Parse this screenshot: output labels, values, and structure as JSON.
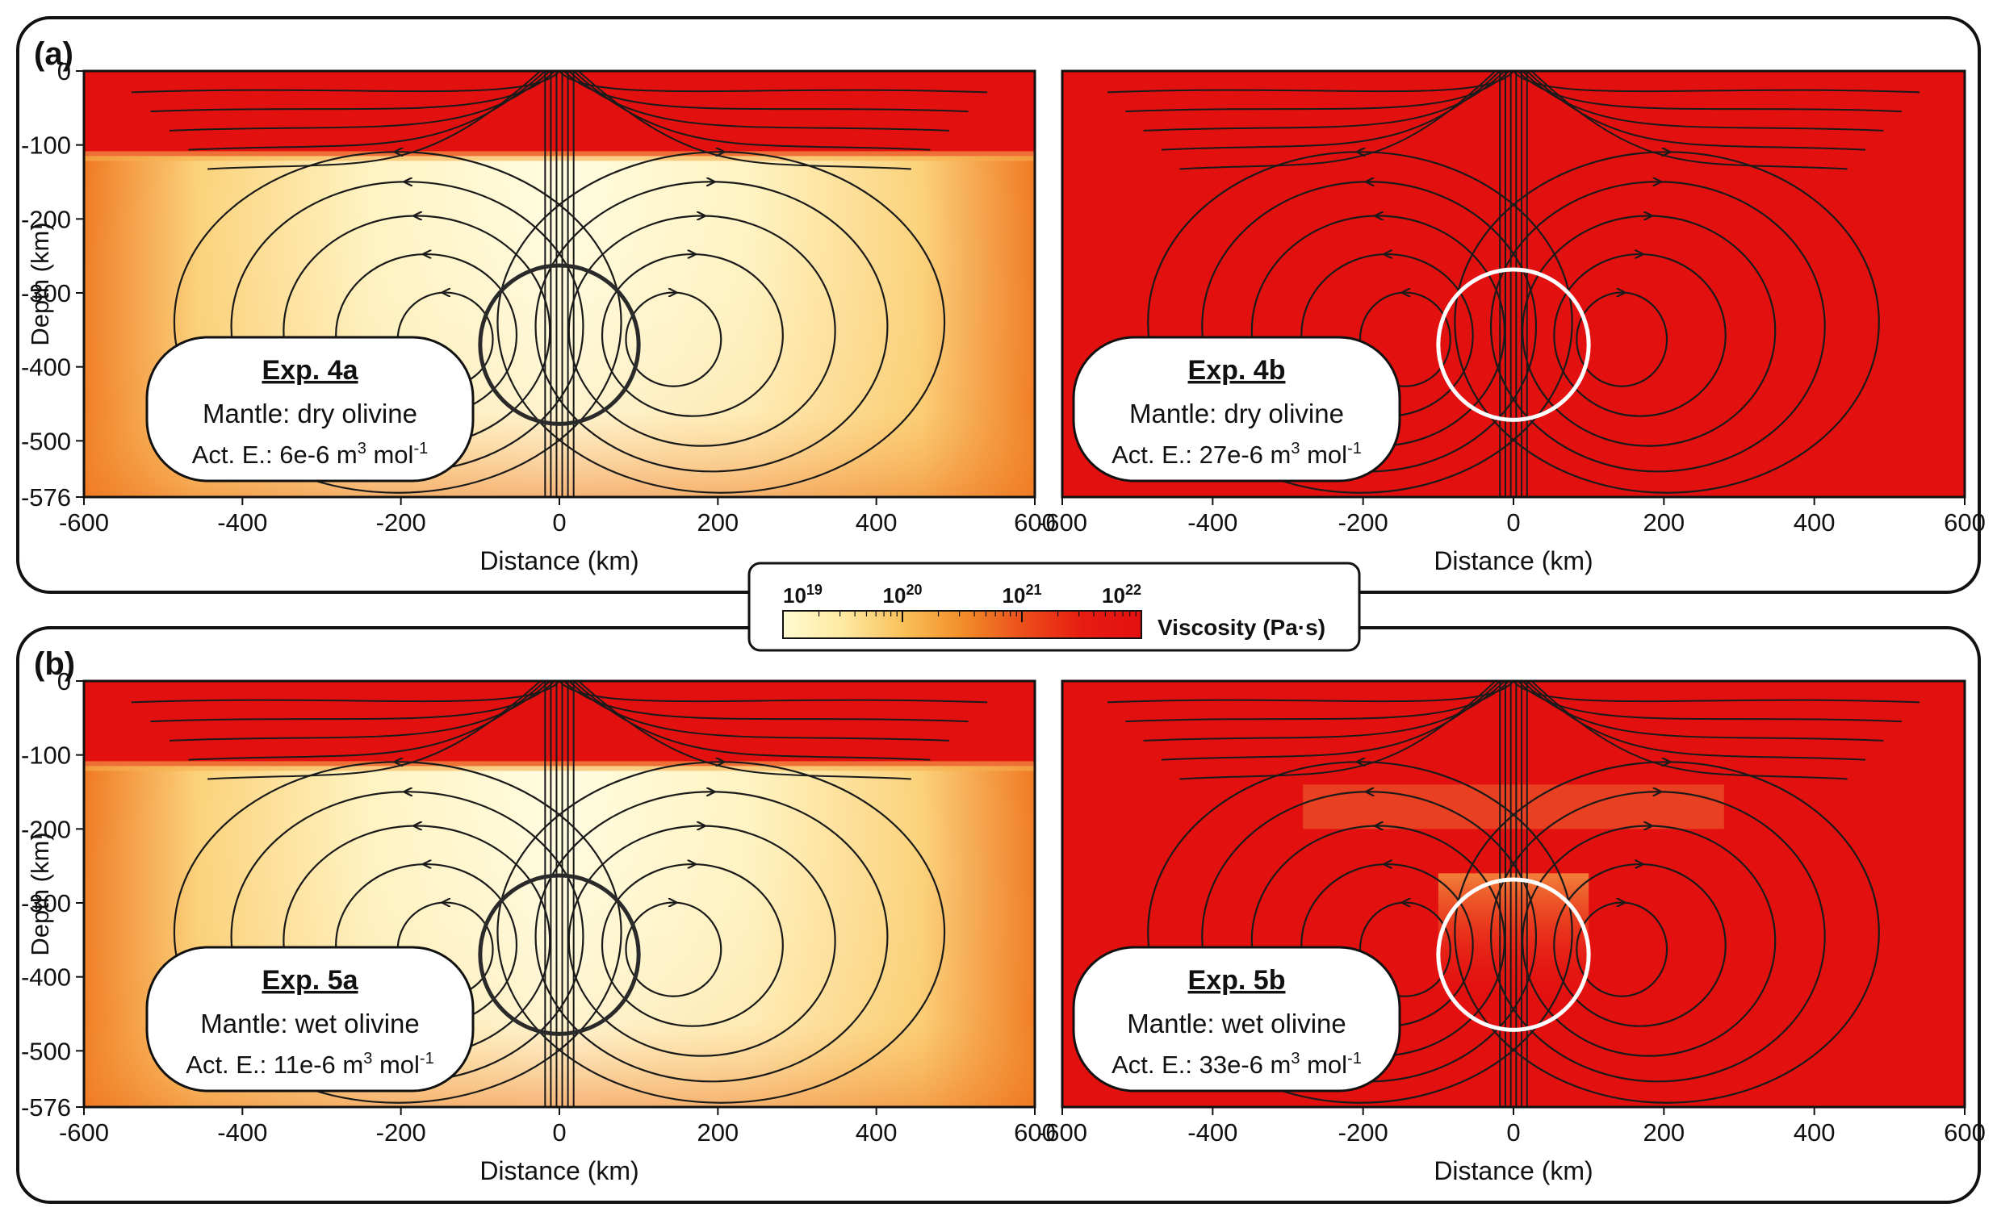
{
  "panel_groups": [
    {
      "label": "(a)"
    },
    {
      "label": "(b)"
    }
  ],
  "colorbar": {
    "title": "Viscosity (Pa·s)",
    "ticks": [
      {
        "base": "10",
        "exp": "19",
        "value": 19
      },
      {
        "base": "10",
        "exp": "20",
        "value": 20
      },
      {
        "base": "10",
        "exp": "21",
        "value": 21
      },
      {
        "base": "10",
        "exp": "22",
        "value": 22
      }
    ],
    "colors": [
      "#fffbcf",
      "#fde9a2",
      "#f9c15a",
      "#f28e2a",
      "#ec4f1b",
      "#e81d12",
      "#e31010"
    ]
  },
  "colors": {
    "high_viscosity": "#e31010",
    "low_viscosity": "#fffbd6",
    "streamline": "#1a1a1a",
    "circle_dark": "#2a2a2a",
    "circle_light": "#ffffff",
    "frame": "#111111"
  },
  "chart_data": [
    {
      "type": "heatmap",
      "id": "4a",
      "panel": "(a)",
      "xlabel": "Distance (km)",
      "ylabel": "Depth (km)",
      "xlim": [
        -600,
        600
      ],
      "ylim": [
        -576,
        0
      ],
      "xticks": [
        -600,
        -400,
        -200,
        0,
        200,
        400,
        600
      ],
      "yticks": [
        0,
        -100,
        -200,
        -300,
        -400,
        -500,
        -576
      ],
      "lithosphere_base_km": -115,
      "low_viscosity_zone": true,
      "circle": {
        "x_km": 0,
        "y_km": -370,
        "radius_km": 100,
        "color": "dark"
      },
      "label": {
        "title": "Exp. 4a",
        "mantle": "Mantle: dry olivine",
        "act_e_prefix": "Act. E.: 6e-6 m",
        "sup1": "3",
        "mid": " mol",
        "sup2": "-1"
      }
    },
    {
      "type": "heatmap",
      "id": "4b",
      "panel": "(a)",
      "xlabel": "Distance (km)",
      "xlim": [
        -600,
        600
      ],
      "ylim": [
        -576,
        0
      ],
      "xticks": [
        -600,
        -400,
        -200,
        0,
        200,
        400,
        600
      ],
      "low_viscosity_zone": false,
      "circle": {
        "x_km": 0,
        "y_km": -370,
        "radius_km": 100,
        "color": "light"
      },
      "label": {
        "title": "Exp. 4b",
        "mantle": "Mantle: dry olivine",
        "act_e_prefix": "Act. E.: 27e-6 m",
        "sup1": "3",
        "mid": " mol",
        "sup2": "-1"
      }
    },
    {
      "type": "heatmap",
      "id": "5a",
      "panel": "(b)",
      "xlabel": "Distance (km)",
      "ylabel": "Depth (km)",
      "xlim": [
        -600,
        600
      ],
      "ylim": [
        -576,
        0
      ],
      "xticks": [
        -600,
        -400,
        -200,
        0,
        200,
        400,
        600
      ],
      "yticks": [
        0,
        -100,
        -200,
        -300,
        -400,
        -500,
        -576
      ],
      "lithosphere_base_km": -115,
      "low_viscosity_zone": true,
      "circle": {
        "x_km": 0,
        "y_km": -370,
        "radius_km": 100,
        "color": "dark"
      },
      "label": {
        "title": "Exp. 5a",
        "mantle": "Mantle: wet olivine",
        "act_e_prefix": "Act. E.: 11e-6 m",
        "sup1": "3",
        "mid": " mol",
        "sup2": "-1"
      }
    },
    {
      "type": "heatmap",
      "id": "5b",
      "panel": "(b)",
      "xlabel": "Distance (km)",
      "xlim": [
        -600,
        600
      ],
      "ylim": [
        -576,
        0
      ],
      "xticks": [
        -600,
        -400,
        -200,
        0,
        200,
        400,
        600
      ],
      "low_viscosity_zone": false,
      "partial_softening": true,
      "circle": {
        "x_km": 0,
        "y_km": -370,
        "radius_km": 100,
        "color": "light"
      },
      "label": {
        "title": "Exp. 5b",
        "mantle": "Mantle: wet olivine",
        "act_e_prefix": "Act. E.: 33e-6 m",
        "sup1": "3",
        "mid": " mol",
        "sup2": "-1"
      }
    }
  ]
}
